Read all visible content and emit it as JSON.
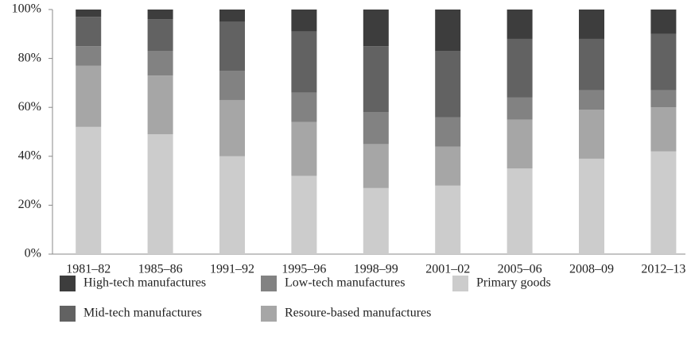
{
  "chart_data": {
    "type": "stacked_bar",
    "categories": [
      "1981–82",
      "1985–86",
      "1991–92",
      "1995–96",
      "1998–99",
      "2001–02",
      "2005–06",
      "2008–09",
      "2012–13"
    ],
    "series": [
      {
        "name": "High-tech manufactures",
        "color": "#3d3d3d",
        "values": [
          3,
          4,
          5,
          9,
          15,
          17,
          12,
          12,
          10
        ]
      },
      {
        "name": "Mid-tech manufactures",
        "color": "#626262",
        "values": [
          12,
          13,
          20,
          25,
          27,
          27,
          24,
          21,
          23
        ]
      },
      {
        "name": "Low-tech manufactures",
        "color": "#828282",
        "values": [
          8,
          10,
          12,
          12,
          13,
          12,
          9,
          8,
          7
        ]
      },
      {
        "name": "Resoure-based manufactures",
        "color": "#a6a6a6",
        "values": [
          25,
          24,
          23,
          22,
          18,
          16,
          20,
          20,
          18
        ]
      },
      {
        "name": "Primary goods",
        "color": "#cccccc",
        "values": [
          52,
          49,
          40,
          32,
          27,
          28,
          35,
          39,
          42
        ]
      }
    ],
    "ylim": [
      0,
      100
    ],
    "yticks": [
      {
        "value": 0,
        "label": "0%"
      },
      {
        "value": 20,
        "label": "20%"
      },
      {
        "value": 40,
        "label": "40%"
      },
      {
        "value": 60,
        "label": "60%"
      },
      {
        "value": 80,
        "label": "80%"
      },
      {
        "value": 100,
        "label": "100%"
      }
    ]
  }
}
